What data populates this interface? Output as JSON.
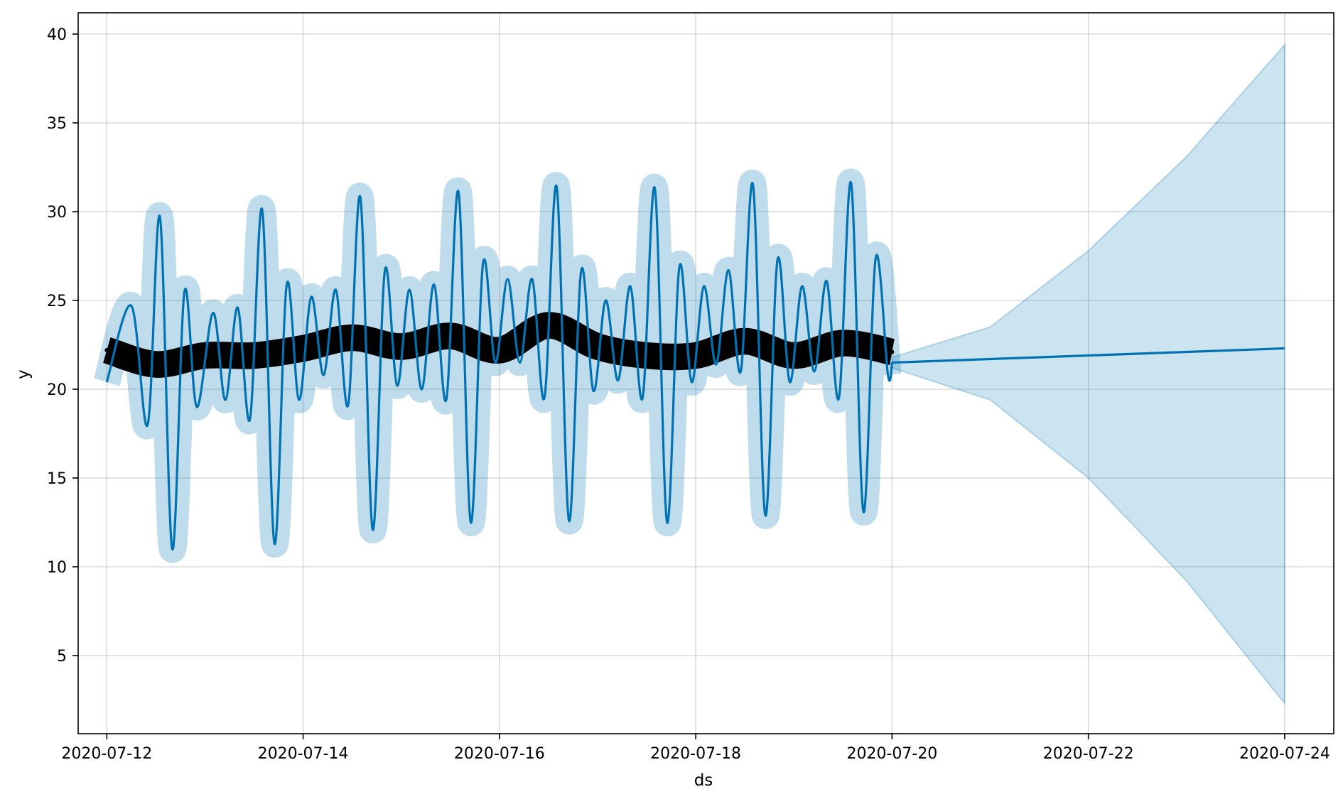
{
  "chart_data": {
    "type": "line",
    "title": "",
    "xlabel": "ds",
    "ylabel": "y",
    "xlim": [
      "2020-07-11T17:00",
      "2020-07-24T12:00"
    ],
    "ylim": [
      0.6,
      41.2
    ],
    "x_ticks": [
      "2020-07-12",
      "2020-07-14",
      "2020-07-16",
      "2020-07-18",
      "2020-07-20",
      "2020-07-22",
      "2020-07-24"
    ],
    "y_ticks": [
      5,
      10,
      15,
      20,
      25,
      30,
      35,
      40
    ],
    "grid": true,
    "legend": "none",
    "colors": {
      "forecast": "#0072b2",
      "interval": "#0072b2",
      "observed": "#000000"
    },
    "series": [
      {
        "kind": "observed-points",
        "x": [
          "2020-07-12T00:00",
          "2020-07-12T12:00",
          "2020-07-13T00:00",
          "2020-07-13T12:00",
          "2020-07-14T00:00",
          "2020-07-14T12:00",
          "2020-07-15T00:00",
          "2020-07-15T12:00",
          "2020-07-16T00:00",
          "2020-07-16T12:00",
          "2020-07-17T00:00",
          "2020-07-17T12:00",
          "2020-07-18T00:00",
          "2020-07-18T12:00",
          "2020-07-19T00:00",
          "2020-07-19T12:00",
          "2020-07-20T00:00"
        ],
        "y": [
          22.2,
          21.4,
          21.9,
          21.9,
          22.3,
          22.9,
          22.4,
          23.0,
          22.2,
          23.6,
          22.4,
          21.9,
          21.9,
          22.7,
          21.9,
          22.6,
          22.1
        ],
        "band_height": 1.5
      },
      {
        "kind": "forecast-line",
        "x": [
          "2020-07-12T00:00",
          "2020-07-12T06:00",
          "2020-07-12T10:00",
          "2020-07-12T13:00",
          "2020-07-12T16:00",
          "2020-07-12T19:00",
          "2020-07-12T22:00",
          "2020-07-13T02:00",
          "2020-07-13T05:00",
          "2020-07-13T08:00",
          "2020-07-13T11:00",
          "2020-07-13T14:00",
          "2020-07-13T17:00",
          "2020-07-13T20:00",
          "2020-07-13T23:00",
          "2020-07-14T02:00",
          "2020-07-14T05:00",
          "2020-07-14T08:00",
          "2020-07-14T11:00",
          "2020-07-14T14:00",
          "2020-07-14T17:00",
          "2020-07-14T20:00",
          "2020-07-14T23:00",
          "2020-07-15T02:00",
          "2020-07-15T05:00",
          "2020-07-15T08:00",
          "2020-07-15T11:00",
          "2020-07-15T14:00",
          "2020-07-15T17:00",
          "2020-07-15T20:00",
          "2020-07-15T23:00",
          "2020-07-16T02:00",
          "2020-07-16T05:00",
          "2020-07-16T08:00",
          "2020-07-16T11:00",
          "2020-07-16T14:00",
          "2020-07-16T17:00",
          "2020-07-16T20:00",
          "2020-07-16T23:00",
          "2020-07-17T02:00",
          "2020-07-17T05:00",
          "2020-07-17T08:00",
          "2020-07-17T11:00",
          "2020-07-17T14:00",
          "2020-07-17T17:00",
          "2020-07-17T20:00",
          "2020-07-17T23:00",
          "2020-07-18T02:00",
          "2020-07-18T05:00",
          "2020-07-18T08:00",
          "2020-07-18T11:00",
          "2020-07-18T14:00",
          "2020-07-18T17:00",
          "2020-07-18T20:00",
          "2020-07-18T23:00",
          "2020-07-19T02:00",
          "2020-07-19T05:00",
          "2020-07-19T08:00",
          "2020-07-19T11:00",
          "2020-07-19T14:00",
          "2020-07-19T17:00",
          "2020-07-19T20:00",
          "2020-07-19T23:00",
          "2020-07-20T00:00",
          "2020-07-21T00:00",
          "2020-07-22T00:00",
          "2020-07-23T00:00",
          "2020-07-24T00:00"
        ],
        "y": [
          20.4,
          24.7,
          18.0,
          29.7,
          11.0,
          25.5,
          19.0,
          24.3,
          19.4,
          24.6,
          18.3,
          30.1,
          11.3,
          25.9,
          19.4,
          25.2,
          20.8,
          25.6,
          19.1,
          30.8,
          12.1,
          26.7,
          20.2,
          25.6,
          20.0,
          25.9,
          19.4,
          31.1,
          12.5,
          27.1,
          21.5,
          26.2,
          21.5,
          26.2,
          19.5,
          31.4,
          12.6,
          26.7,
          19.9,
          25.0,
          20.5,
          25.8,
          19.5,
          31.3,
          12.5,
          26.9,
          20.4,
          25.8,
          21.4,
          26.7,
          21.0,
          31.5,
          12.9,
          27.3,
          20.4,
          25.8,
          21.0,
          26.1,
          19.5,
          31.6,
          13.1,
          27.4,
          20.8,
          21.5,
          21.7,
          21.9,
          22.1,
          22.3
        ],
        "interval_width": 0.7
      },
      {
        "kind": "uncertainty-interval",
        "x": [
          "2020-07-20T00:00",
          "2020-07-21T00:00",
          "2020-07-22T00:00",
          "2020-07-23T00:00",
          "2020-07-24T00:00"
        ],
        "upper": [
          21.8,
          23.5,
          27.8,
          33.1,
          39.4
        ],
        "lower": [
          21.2,
          19.4,
          15.0,
          9.2,
          2.3
        ]
      }
    ]
  }
}
